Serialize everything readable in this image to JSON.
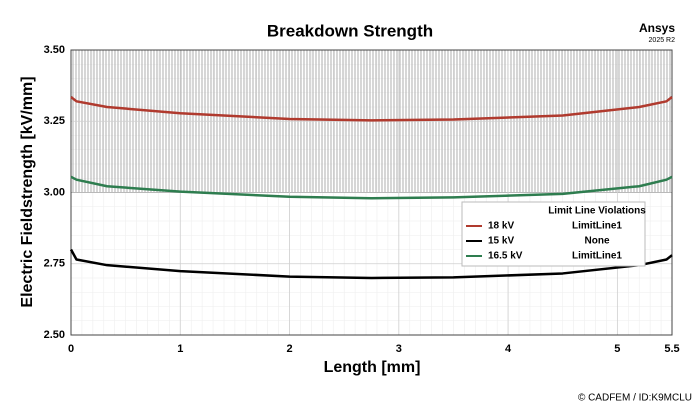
{
  "chart_data": {
    "type": "line",
    "title": "Breakdown Strength",
    "brand": "Ansys",
    "version": "2025 R2",
    "credit": "© CADFEM / ID:K9MCLU",
    "x_label": "Length [mm]",
    "y_label": "Electric Fieldstrength [kV/mm]",
    "xlim": [
      0,
      5.5
    ],
    "xticks": [
      0,
      1,
      2,
      3,
      4,
      5,
      5.5
    ],
    "ylim": [
      2.5,
      3.5
    ],
    "yticks": [
      {
        "value": 2.5,
        "label": "2.50"
      },
      2.75,
      {
        "value": 3.0,
        "label": "3.00"
      },
      3.25,
      {
        "value": 3.5,
        "label": "3.50"
      }
    ],
    "grid": true,
    "limit_zone": [
      3.0,
      3.5
    ],
    "x": [
      0,
      0.05,
      0.33,
      1,
      2,
      2.75,
      3.5,
      4.5,
      5.2,
      5.45,
      5.5
    ],
    "series": [
      {
        "name": "18 kV",
        "color": "#b03a2e",
        "violation": "LimitLine1",
        "values": [
          3.335,
          3.32,
          3.3,
          3.278,
          3.258,
          3.253,
          3.256,
          3.27,
          3.3,
          3.32,
          3.335
        ]
      },
      {
        "name": "15 kV",
        "color": "#000000",
        "violation": "None",
        "values": [
          2.8,
          2.765,
          2.745,
          2.724,
          2.705,
          2.7,
          2.702,
          2.716,
          2.745,
          2.765,
          2.78
        ]
      },
      {
        "name": "16.5 kV",
        "color": "#2e7d4f",
        "violation": "LimitLine1",
        "values": [
          3.055,
          3.045,
          3.022,
          3.003,
          2.985,
          2.98,
          2.983,
          2.995,
          3.022,
          3.045,
          3.055
        ]
      }
    ],
    "legend_title": "Limit Line Violations",
    "legend": "right"
  }
}
